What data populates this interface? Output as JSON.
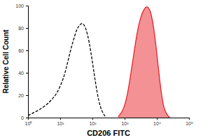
{
  "chart_data": {
    "type": "line",
    "xlabel": "CD206 FITC",
    "ylabel": "Relative Cell Count",
    "log": "x",
    "x": [
      1,
      1.26,
      1.58,
      2,
      2.51,
      3.16,
      3.98,
      5.01,
      6.31,
      7.94,
      10,
      12.6,
      15.8,
      20,
      25.1,
      31.6,
      39.8,
      50.1,
      63.1,
      79.4,
      100,
      126,
      158,
      200,
      251,
      316,
      398,
      501,
      631,
      794,
      1000,
      1260,
      1580,
      2000,
      2510,
      3160,
      3980,
      5010,
      6310,
      7940,
      10000,
      12600,
      15800,
      20000,
      25100,
      31600,
      39800,
      50100,
      63100,
      79400,
      100000
    ],
    "series": [
      {
        "color": "#000000",
        "line_style": "dashed",
        "values": [
          2,
          3,
          5,
          6,
          8,
          10,
          12,
          15,
          18,
          22,
          28,
          35,
          45,
          58,
          68,
          78,
          83,
          85,
          80,
          68,
          50,
          30,
          14,
          5,
          1,
          null,
          null,
          null,
          null,
          null,
          null,
          null,
          null,
          null,
          null,
          null,
          null,
          null,
          null,
          null,
          null,
          null,
          null,
          null,
          null,
          null,
          null,
          null,
          null,
          null,
          null
        ]
      },
      {
        "color": "#e8232a",
        "type": "area",
        "values": [
          null,
          null,
          null,
          null,
          null,
          null,
          null,
          null,
          null,
          null,
          null,
          null,
          null,
          null,
          null,
          null,
          null,
          null,
          null,
          null,
          null,
          null,
          null,
          null,
          null,
          null,
          null,
          null,
          1,
          4,
          10,
          22,
          40,
          60,
          78,
          90,
          97,
          100,
          96,
          82,
          58,
          30,
          10,
          3,
          0,
          null,
          null,
          null,
          null,
          null,
          null
        ]
      }
    ],
    "xlim": [
      1,
      100000
    ],
    "xticks": [
      {
        "value": 1,
        "label": "10⁰"
      },
      {
        "value": 10,
        "label": "10¹"
      },
      {
        "value": 100,
        "label": "10²"
      },
      {
        "value": 1000,
        "label": "10³"
      },
      {
        "value": 10000,
        "label": "10⁴"
      },
      {
        "value": 100000,
        "label": "10⁵"
      }
    ],
    "ylim": [
      0,
      100
    ],
    "yticks": [
      0,
      20,
      40,
      60,
      80,
      100
    ]
  }
}
